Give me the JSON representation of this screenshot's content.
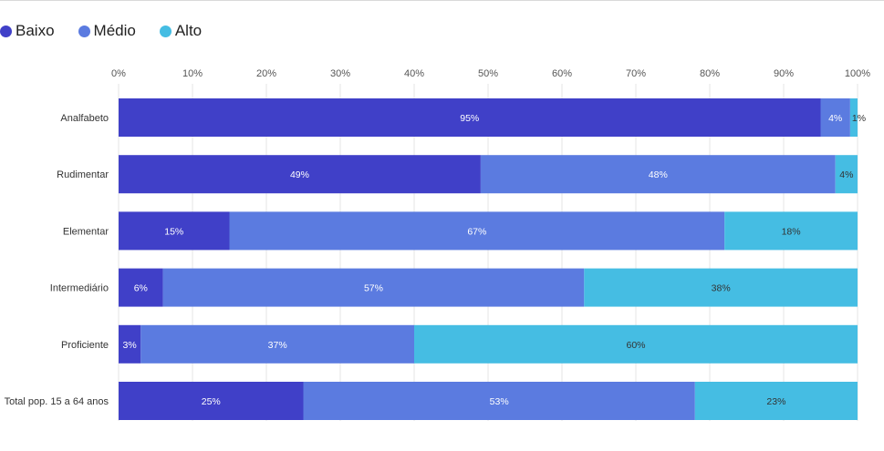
{
  "legend": [
    {
      "name": "Baixo",
      "color": "#4040c8"
    },
    {
      "name": "Médio",
      "color": "#5b7be0"
    },
    {
      "name": "Alto",
      "color": "#45bde3"
    }
  ],
  "chart_data": {
    "type": "bar",
    "orientation": "horizontal",
    "stacked": true,
    "categories": [
      "Analfabeto",
      "Rudimentar",
      "Elementar",
      "Intermediário",
      "Proficiente",
      "Total pop. 15 a 64 anos"
    ],
    "series": [
      {
        "name": "Baixo",
        "color": "#4040c8",
        "values": [
          95,
          49,
          15,
          6,
          3,
          25
        ],
        "labels": [
          "95%",
          "49%",
          "15%",
          "6%",
          "3%",
          "25%"
        ],
        "label_color": "#ffffff"
      },
      {
        "name": "Médio",
        "color": "#5b7be0",
        "values": [
          4,
          48,
          67,
          57,
          37,
          53
        ],
        "labels": [
          "4%",
          "48%",
          "67%",
          "57%",
          "37%",
          "53%"
        ],
        "label_color": "#ffffff"
      },
      {
        "name": "Alto",
        "color": "#45bde3",
        "values": [
          1,
          4,
          18,
          38,
          60,
          23
        ],
        "labels": [
          "1%",
          "4%",
          "18%",
          "38%",
          "60%",
          "23%"
        ],
        "label_color": "#333333"
      }
    ],
    "xlim": [
      0,
      100
    ],
    "x_ticks": [
      "0%",
      "10%",
      "20%",
      "30%",
      "40%",
      "50%",
      "60%",
      "70%",
      "80%",
      "90%",
      "100%"
    ],
    "grid": true,
    "legend_position": "top-left"
  }
}
